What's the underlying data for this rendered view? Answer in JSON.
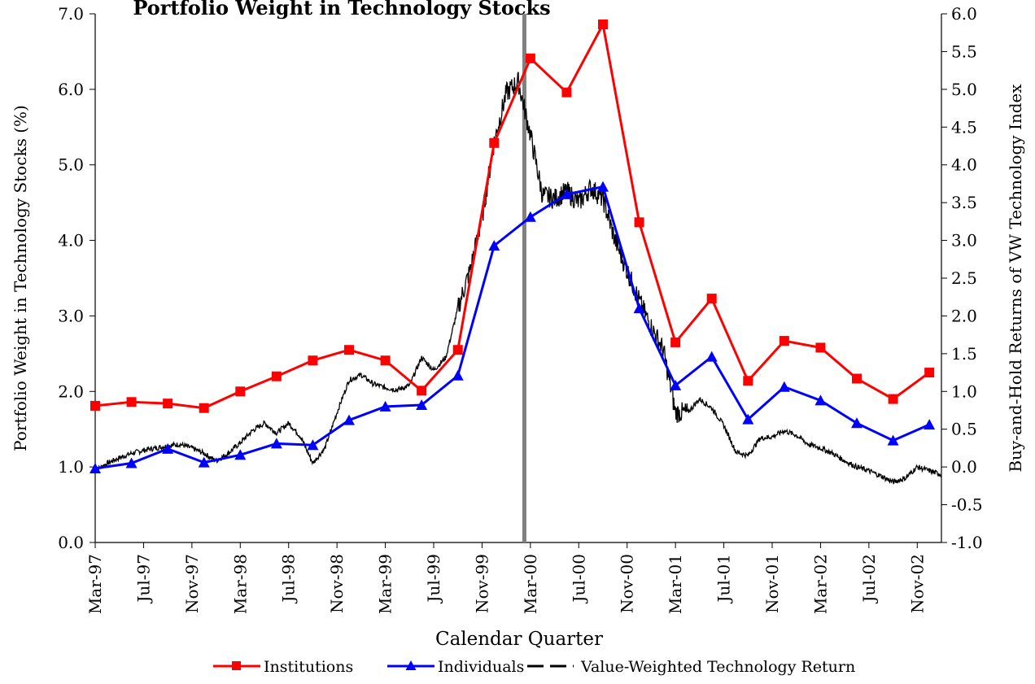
{
  "chart_data": {
    "type": "line",
    "title": "Portfolio Weight in Technology Stocks",
    "xlabel": "Calendar Quarter",
    "ylabel_left": "Portfolio Weight in Technology Stocks (%)",
    "ylabel_right": "Buy-and-Hold Returns of VW Technology Index",
    "ylim_left": [
      0,
      7
    ],
    "ylim_right": [
      -1,
      6
    ],
    "yticks_left": [
      "0.0",
      "1.0",
      "2.0",
      "3.0",
      "4.0",
      "5.0",
      "6.0",
      "7.0"
    ],
    "yticks_right": [
      "-1.0",
      "-0.5",
      "0.0",
      "0.5",
      "1.0",
      "1.5",
      "2.0",
      "2.5",
      "3.0",
      "3.5",
      "4.0",
      "4.5",
      "5.0",
      "5.5",
      "6.0"
    ],
    "x_tick_labels": [
      "Mar-97",
      "Jul-97",
      "Nov-97",
      "Mar-98",
      "Jul-98",
      "Nov-98",
      "Mar-99",
      "Jul-99",
      "Nov-99",
      "Mar-00",
      "Jul-00",
      "Nov-00",
      "Mar-01",
      "Jul-01",
      "Nov-01",
      "Mar-02",
      "Jul-02",
      "Nov-02"
    ],
    "x_range_months": [
      0,
      70
    ],
    "marker_line_month": 35.5,
    "quarters": [
      "Mar-97",
      "Jun-97",
      "Sep-97",
      "Dec-97",
      "Mar-98",
      "Jun-98",
      "Sep-98",
      "Dec-98",
      "Mar-99",
      "Jun-99",
      "Sep-99",
      "Dec-99",
      "Mar-00",
      "Jun-00",
      "Sep-00",
      "Dec-00",
      "Mar-01",
      "Jun-01",
      "Sep-01",
      "Dec-01",
      "Mar-02",
      "Jun-02",
      "Sep-02",
      "Dec-02"
    ],
    "series": [
      {
        "name": "Institutions",
        "color": "#ff0000",
        "marker": "square",
        "axis": "left",
        "values": [
          1.81,
          1.86,
          1.84,
          1.78,
          2.0,
          2.2,
          2.41,
          2.55,
          2.41,
          2.01,
          2.55,
          5.29,
          6.41,
          5.96,
          6.86,
          4.24,
          2.65,
          3.23,
          2.14,
          2.67,
          2.58,
          2.17,
          1.9,
          2.25
        ]
      },
      {
        "name": "Individuals",
        "color": "#0000ff",
        "marker": "triangle",
        "axis": "left",
        "values": [
          0.98,
          1.05,
          1.24,
          1.06,
          1.16,
          1.31,
          1.29,
          1.62,
          1.8,
          1.82,
          2.21,
          3.93,
          4.31,
          4.61,
          4.71,
          3.1,
          2.08,
          2.46,
          1.63,
          2.06,
          1.88,
          1.58,
          1.35,
          1.56
        ]
      },
      {
        "name": "Value-Weighted Technology Return",
        "color": "#000000",
        "marker": "none",
        "axis": "right",
        "month_points": [
          [
            0,
            -0.05
          ],
          [
            1,
            0.05
          ],
          [
            2,
            0.12
          ],
          [
            3,
            0.18
          ],
          [
            4,
            0.22
          ],
          [
            5,
            0.25
          ],
          [
            6,
            0.28
          ],
          [
            7,
            0.3
          ],
          [
            8,
            0.25
          ],
          [
            9,
            0.18
          ],
          [
            10,
            0.08
          ],
          [
            11,
            0.18
          ],
          [
            12,
            0.32
          ],
          [
            13,
            0.48
          ],
          [
            14,
            0.58
          ],
          [
            15,
            0.45
          ],
          [
            16,
            0.58
          ],
          [
            17,
            0.4
          ],
          [
            18,
            0.05
          ],
          [
            19,
            0.25
          ],
          [
            20,
            0.72
          ],
          [
            21,
            1.15
          ],
          [
            22,
            1.22
          ],
          [
            23,
            1.1
          ],
          [
            24,
            1.05
          ],
          [
            25,
            1.02
          ],
          [
            26,
            1.08
          ],
          [
            27,
            1.45
          ],
          [
            28,
            1.28
          ],
          [
            29,
            1.45
          ],
          [
            30,
            2.1
          ],
          [
            31,
            2.6
          ],
          [
            32,
            3.3
          ],
          [
            33,
            4.3
          ],
          [
            34,
            4.95
          ],
          [
            35,
            5.1
          ],
          [
            36,
            4.4
          ],
          [
            37,
            3.6
          ],
          [
            38,
            3.55
          ],
          [
            39,
            3.65
          ],
          [
            40,
            3.5
          ],
          [
            41,
            3.7
          ],
          [
            42,
            3.55
          ],
          [
            43,
            3.0
          ],
          [
            44,
            2.6
          ],
          [
            45,
            2.2
          ],
          [
            46,
            1.85
          ],
          [
            47,
            1.55
          ],
          [
            48,
            0.72
          ],
          [
            49,
            0.72
          ],
          [
            50,
            0.9
          ],
          [
            51,
            0.78
          ],
          [
            52,
            0.55
          ],
          [
            53,
            0.2
          ],
          [
            54,
            0.15
          ],
          [
            55,
            0.38
          ],
          [
            56,
            0.4
          ],
          [
            57,
            0.48
          ],
          [
            58,
            0.42
          ],
          [
            59,
            0.3
          ],
          [
            60,
            0.25
          ],
          [
            61,
            0.18
          ],
          [
            62,
            0.08
          ],
          [
            63,
            0.0
          ],
          [
            64,
            -0.05
          ],
          [
            65,
            -0.12
          ],
          [
            66,
            -0.2
          ],
          [
            67,
            -0.15
          ],
          [
            68,
            0.0
          ],
          [
            69,
            -0.05
          ],
          [
            70,
            -0.1
          ]
        ]
      }
    ],
    "legend": {
      "placement": "bottom",
      "entries": [
        "Institutions",
        "Individuals",
        "Value-Weighted Technology Return"
      ]
    },
    "grid": false
  }
}
